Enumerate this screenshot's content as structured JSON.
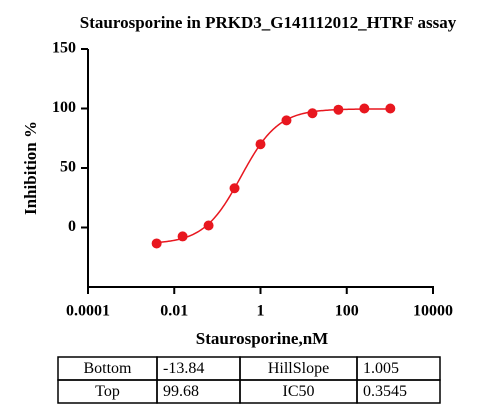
{
  "chart_data": {
    "type": "dose_response",
    "title": "Staurosporine in PRKD3_G141112012_HTRF assay",
    "x_label": "Staurosporine,nM",
    "y_label": "Inhibition %",
    "x": [
      0.00390625,
      0.015625,
      0.0625,
      0.25,
      1,
      4,
      16,
      64,
      256,
      1024
    ],
    "series": [
      {
        "color": "#e8171f",
        "values": [
          -13.4,
          -7.5,
          1.7,
          33,
          70,
          90,
          96,
          99,
          100,
          100
        ]
      }
    ],
    "x_log": true,
    "xlim": [
      0.0001,
      10000
    ],
    "xticks": [
      0.0001,
      0.01,
      1,
      100,
      10000
    ],
    "ylim": [
      -50,
      150
    ],
    "yticks": [
      0,
      50,
      100,
      150
    ],
    "fit_table": {
      "rows": [
        [
          "Bottom",
          -13.84,
          "HillSlope",
          1.005
        ],
        [
          "Top",
          99.68,
          "IC50",
          0.3545
        ]
      ]
    }
  }
}
